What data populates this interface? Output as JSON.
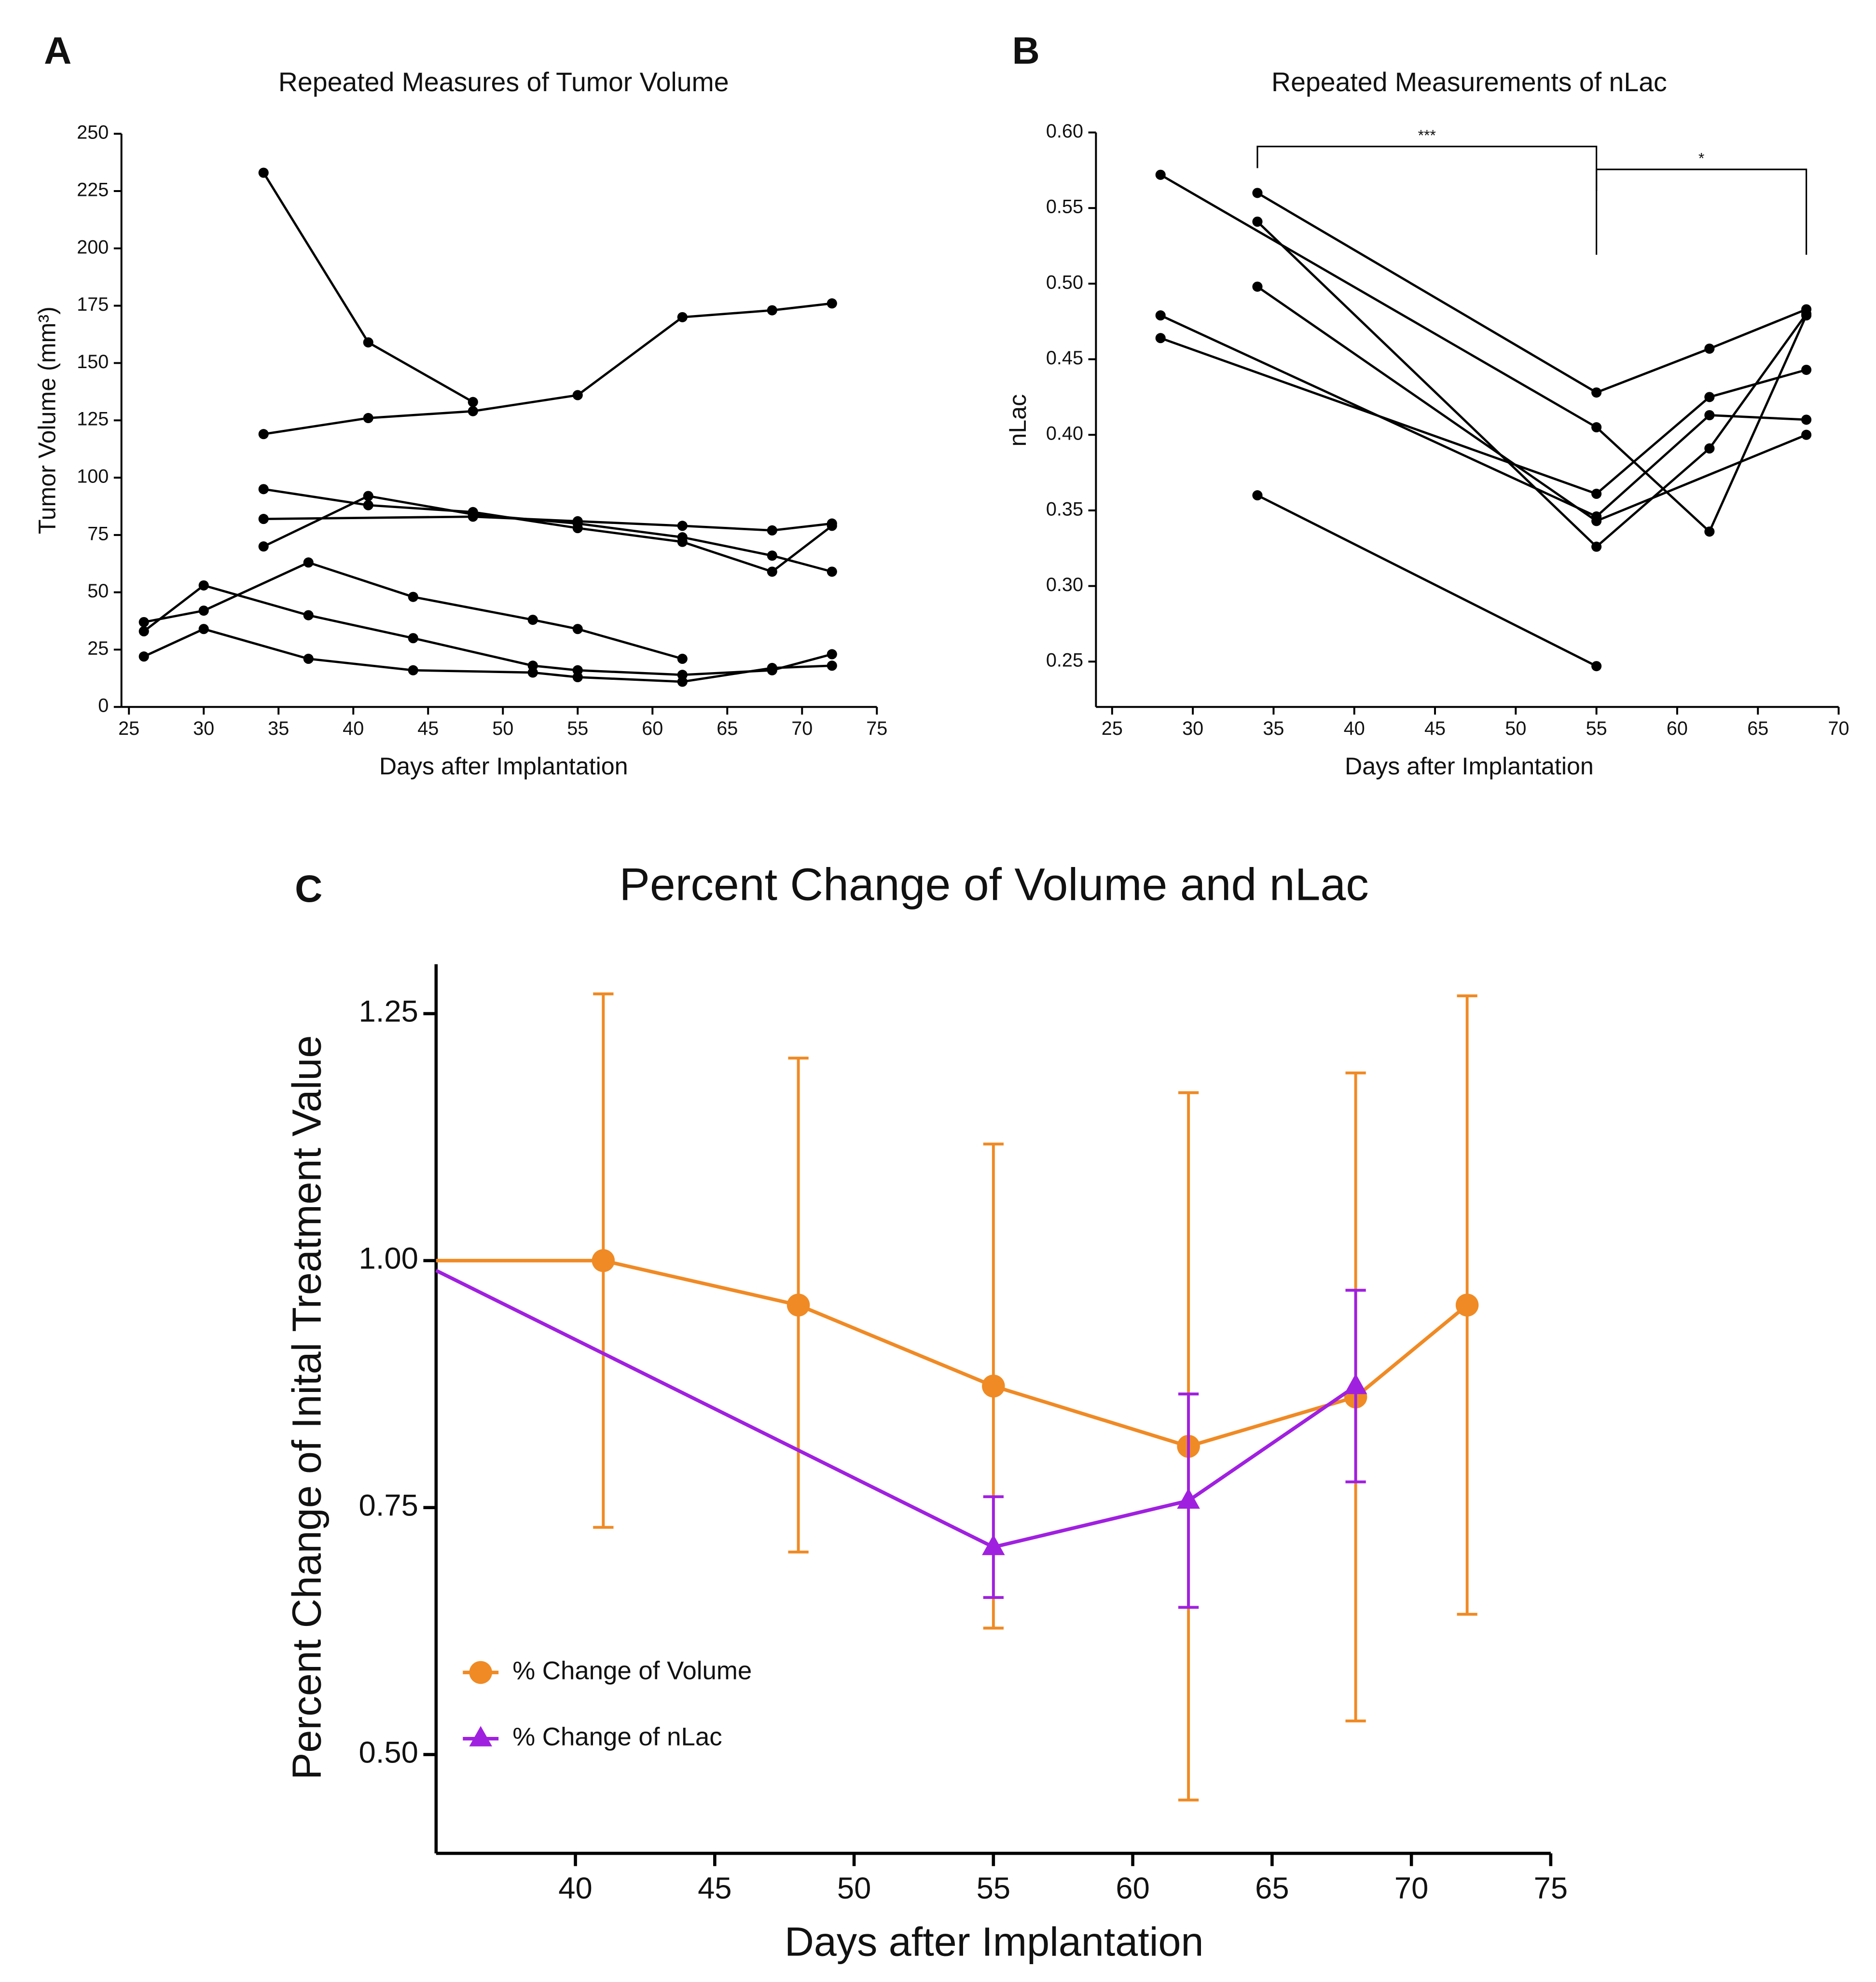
{
  "chart_data": [
    {
      "type": "line",
      "panel_label": "A",
      "title": "Repeated Measures of Tumor Volume",
      "x_label": "Days after Implantation",
      "y_label": "Tumor Volume (mm³)",
      "xlim": [
        24.5,
        75
      ],
      "xticks": [
        25,
        30,
        35,
        40,
        45,
        50,
        55,
        60,
        65,
        70,
        75
      ],
      "ylim": [
        0,
        250
      ],
      "yticks": [
        0,
        25,
        50,
        75,
        100,
        125,
        150,
        175,
        200,
        225,
        250
      ],
      "series": [
        {
          "color": "#000000",
          "x": [
            34,
            41,
            48
          ],
          "values": [
            233,
            159,
            133
          ]
        },
        {
          "color": "#000000",
          "x": [
            34,
            41,
            48,
            55,
            62,
            68,
            72
          ],
          "values": [
            119,
            126,
            129,
            136,
            170,
            173,
            176
          ]
        },
        {
          "color": "#000000",
          "x": [
            34,
            41,
            48,
            55,
            62,
            68,
            72
          ],
          "values": [
            95,
            88,
            85,
            78,
            72,
            59,
            79
          ]
        },
        {
          "color": "#000000",
          "x": [
            34,
            48,
            55,
            62,
            68,
            72
          ],
          "values": [
            82,
            83,
            81,
            79,
            77,
            80
          ]
        },
        {
          "color": "#000000",
          "x": [
            34,
            41,
            48,
            55,
            62,
            68,
            72
          ],
          "values": [
            70,
            92,
            84,
            80,
            74,
            66,
            59
          ]
        },
        {
          "color": "#000000",
          "x": [
            26,
            30,
            37,
            44,
            52,
            55,
            62
          ],
          "values": [
            37,
            42,
            63,
            48,
            38,
            34,
            21
          ]
        },
        {
          "color": "#000000",
          "x": [
            26,
            30,
            37,
            44,
            52,
            55,
            62,
            68,
            72
          ],
          "values": [
            33,
            53,
            40,
            30,
            18,
            16,
            14,
            16,
            23
          ]
        },
        {
          "color": "#000000",
          "x": [
            26,
            30,
            37,
            44,
            52,
            55,
            62,
            68,
            72
          ],
          "values": [
            22,
            34,
            21,
            16,
            15,
            13,
            11,
            17,
            18
          ]
        }
      ]
    },
    {
      "type": "line",
      "panel_label": "B",
      "title": "Repeated Measurements of nLac",
      "x_label": "Days after Implantation",
      "y_label": "nLac",
      "xlim": [
        24,
        70
      ],
      "xticks": [
        25,
        30,
        35,
        40,
        45,
        50,
        55,
        60,
        65,
        70
      ],
      "ylim": [
        0.22,
        0.6
      ],
      "yticks": [
        0.25,
        {
          "value": 0.3,
          "label": "0.30"
        },
        0.35,
        {
          "value": 0.4,
          "label": "0.40"
        },
        0.45,
        {
          "value": 0.5,
          "label": "0.50"
        },
        0.55,
        {
          "value": 0.6,
          "label": "0.60"
        }
      ],
      "series": [
        {
          "color": "#000000",
          "x": [
            28,
            55,
            62,
            68
          ],
          "values": [
            0.572,
            0.405,
            0.336,
            0.479
          ]
        },
        {
          "color": "#000000",
          "x": [
            28,
            55,
            62,
            68
          ],
          "values": [
            0.479,
            0.346,
            0.413,
            0.41
          ]
        },
        {
          "color": "#000000",
          "x": [
            28,
            55,
            62,
            68
          ],
          "values": [
            0.464,
            0.361,
            0.425,
            0.443
          ]
        },
        {
          "color": "#000000",
          "x": [
            34,
            55,
            62,
            68
          ],
          "values": [
            0.56,
            0.428,
            0.457,
            0.483
          ]
        },
        {
          "color": "#000000",
          "x": [
            34,
            55,
            62,
            68
          ],
          "values": [
            0.541,
            0.326,
            0.391,
            0.48
          ]
        },
        {
          "color": "#000000",
          "x": [
            34,
            55,
            68
          ],
          "values": [
            0.498,
            0.343,
            0.4
          ]
        },
        {
          "color": "#000000",
          "x": [
            34,
            55
          ],
          "values": [
            0.36,
            0.247
          ]
        }
      ],
      "annotations": [
        {
          "label": "***",
          "from": 34,
          "to": 55
        },
        {
          "label": "*",
          "from": 55,
          "to": 68
        }
      ]
    },
    {
      "type": "line",
      "panel_label": "C",
      "title": "Percent Change of Volume and nLac",
      "x_label": "Days after Implantation",
      "y_label": "Percent Change of Inital Treatment Value",
      "xlim": [
        35,
        75
      ],
      "xticks": [
        40,
        45,
        50,
        55,
        60,
        65,
        70,
        75
      ],
      "ylim": [
        0.4,
        1.3
      ],
      "yticks": [
        {
          "value": 0.5,
          "label": "0.50"
        },
        0.75,
        {
          "value": 1.0,
          "label": "1.00"
        },
        1.25
      ],
      "legend": "lower left",
      "series": [
        {
          "name": "% Change of Volume",
          "color": "#f08a24",
          "marker": "circle",
          "x": [
            35,
            41,
            48,
            55,
            62,
            68,
            72
          ],
          "values": [
            1.0,
            1.0,
            0.955,
            0.873,
            0.812,
            0.862,
            0.955
          ],
          "errors": [
            null,
            0.27,
            0.25,
            0.245,
            0.358,
            0.328,
            0.313
          ]
        },
        {
          "name": "% Change of nLac",
          "color": "#a020e0",
          "marker": "triangle",
          "x": [
            35,
            55,
            62,
            68
          ],
          "values": [
            0.99,
            0.71,
            0.757,
            0.873
          ],
          "errors": [
            null,
            0.051,
            0.108,
            0.097
          ]
        }
      ]
    }
  ]
}
